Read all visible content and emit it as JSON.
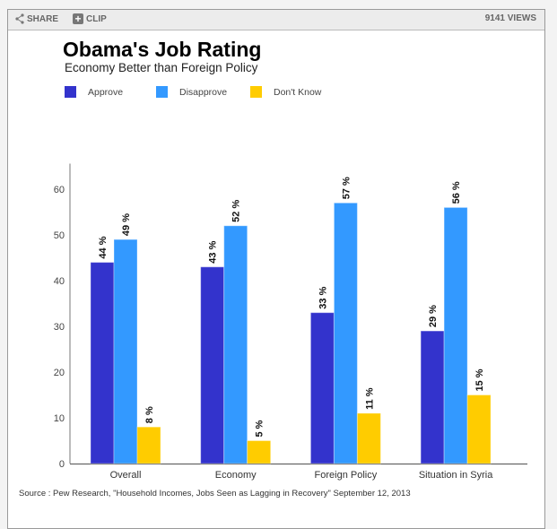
{
  "toolbar": {
    "share_label": "SHARE",
    "share_icon": "share-icon",
    "clip_label": "CLIP",
    "clip_icon": "plus-icon",
    "views_label": "9141 VIEWS"
  },
  "colors": {
    "approve": "#3333cc",
    "disapprove": "#3399ff",
    "dont_know": "#ffcc00"
  },
  "chart_data": {
    "type": "bar",
    "title": "Obama's Job Rating",
    "subtitle": "Economy Better than Foreign Policy",
    "categories": [
      "Overall",
      "Economy",
      "Foreign Policy",
      "Situation in Syria"
    ],
    "series": [
      {
        "name": "Approve",
        "values": [
          44,
          43,
          33,
          29
        ],
        "color": "#3333cc"
      },
      {
        "name": "Disapprove",
        "values": [
          49,
          52,
          57,
          56
        ],
        "color": "#3399ff"
      },
      {
        "name": "Don't Know",
        "values": [
          8,
          5,
          11,
          15
        ],
        "color": "#ffcc00"
      }
    ],
    "data_label_suffix": " %",
    "xlabel": "",
    "ylabel": "",
    "ylim": [
      0,
      65
    ],
    "yticks": [
      0,
      10,
      20,
      30,
      40,
      50,
      60
    ],
    "grid": false,
    "legend_position": "top-left",
    "source": "Source : Pew Research, \"Household Incomes, Jobs Seen as Lagging in Recovery\" September 12, 2013"
  }
}
